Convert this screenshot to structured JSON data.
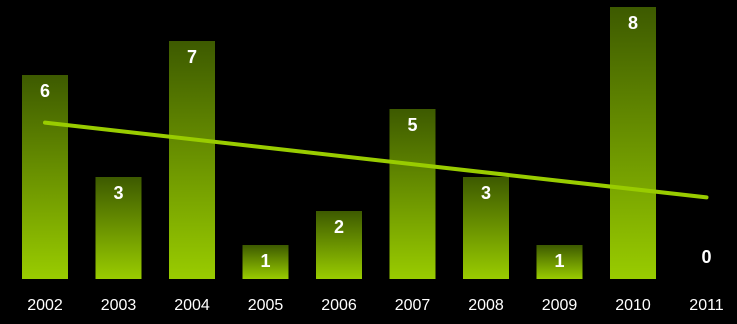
{
  "chart_data": {
    "type": "bar",
    "title": "",
    "xlabel": "",
    "ylabel": "",
    "categories": [
      "2002",
      "2003",
      "2004",
      "2005",
      "2006",
      "2007",
      "2008",
      "2009",
      "2010",
      "2011"
    ],
    "values": [
      6,
      3,
      7,
      1,
      2,
      5,
      3,
      1,
      8,
      0
    ],
    "ylim": [
      0,
      8
    ],
    "trendline": {
      "type": "linear",
      "start_value": 4.6,
      "end_value": 2.4
    },
    "grid": false,
    "legend": "none",
    "colors": {
      "background": "#000000",
      "bar_bottom": "#99cc00",
      "bar_top": "#3d5a00",
      "trendline": "#99cc00",
      "labels": "#ffffff"
    }
  }
}
